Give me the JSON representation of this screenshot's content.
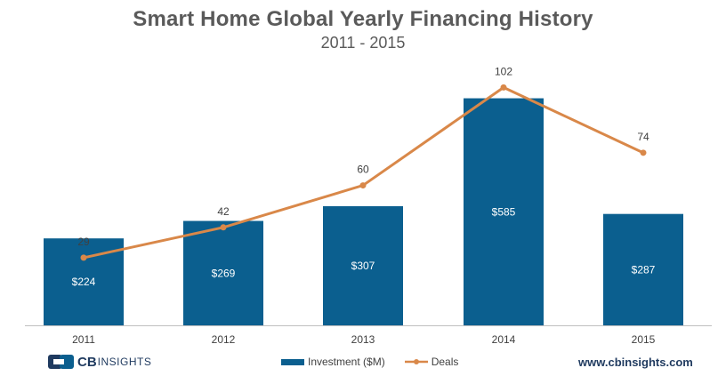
{
  "chart_data": {
    "type": "bar",
    "title": "Smart Home Global Yearly Financing History",
    "subtitle": "2011 - 2015",
    "categories": [
      "2011",
      "2012",
      "2013",
      "2014",
      "2015"
    ],
    "series": [
      {
        "name": "Investment ($M)",
        "kind": "bar",
        "values": [
          224,
          269,
          307,
          585,
          287
        ],
        "labels": [
          "$224",
          "$269",
          "$307",
          "$585",
          "$287"
        ],
        "color": "#0b5f8f"
      },
      {
        "name": "Deals",
        "kind": "line",
        "values": [
          29,
          42,
          60,
          102,
          74
        ],
        "labels": [
          "29",
          "42",
          "60",
          "102",
          "74"
        ],
        "color": "#d98849"
      }
    ],
    "ylim_investment": [
      0,
      655
    ],
    "ylim_deals": [
      0,
      109
    ],
    "legend_position": "bottom-center"
  },
  "logo": {
    "brand": "CB",
    "suffix": "INSIGHTS"
  },
  "footer": {
    "url": "www.cbinsights.com"
  },
  "colors": {
    "bar": "#0b5f8f",
    "line": "#d98849",
    "title": "#5a5a5a",
    "brand": "#1f3a5f"
  }
}
